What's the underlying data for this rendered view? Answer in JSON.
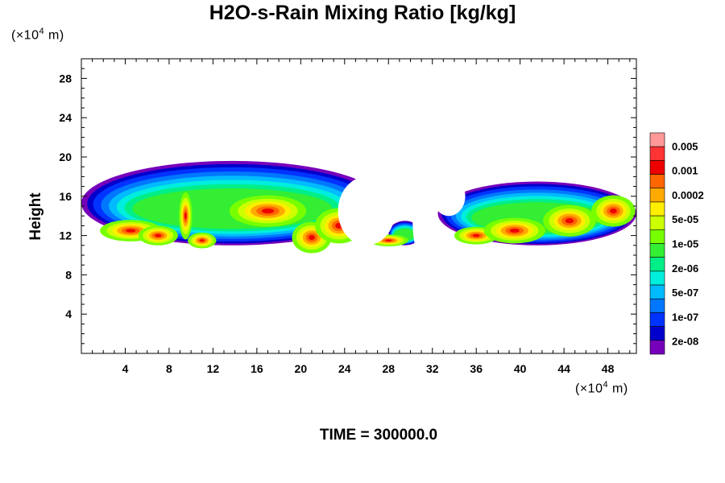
{
  "chart_data": {
    "type": "heatmap",
    "title": "H2O-s-Rain Mixing Ratio [kg/kg]",
    "ylabel": "Height",
    "xlabel": "",
    "x_unit_prefix": "(×10",
    "x_unit_exp": "4",
    "x_unit_suffix": " m)",
    "y_unit_prefix": "(×10",
    "y_unit_exp": "4",
    "y_unit_suffix": " m)",
    "xlim": [
      0,
      50.6
    ],
    "ylim": [
      0,
      30
    ],
    "x_ticks": [
      "4",
      "8",
      "12",
      "16",
      "20",
      "24",
      "28",
      "32",
      "36",
      "40",
      "44",
      "48"
    ],
    "y_ticks": [
      "4",
      "8",
      "12",
      "16",
      "20",
      "24",
      "28"
    ],
    "time_label": "TIME = 300000.0",
    "colorbar": {
      "labels": [
        "0.005",
        "0.001",
        "0.0002",
        "5e-05",
        "1e-05",
        "2e-06",
        "5e-07",
        "1e-07",
        "2e-08"
      ],
      "colors": [
        "#ff9999",
        "#ff3333",
        "#ee0000",
        "#ff6600",
        "#ffaa00",
        "#ffee00",
        "#ccff00",
        "#77ff00",
        "#33ee33",
        "#00ee88",
        "#00eedd",
        "#00bbff",
        "#0077ff",
        "#0033ff",
        "#0000cc",
        "#7700bb"
      ]
    },
    "bands": [
      {
        "x0": 0.0,
        "x1": 27.5,
        "top": 19.6,
        "bottom": 11.0
      },
      {
        "x0": 28.0,
        "x1": 31.0,
        "top": 13.5,
        "bottom": 11.0
      },
      {
        "x0": 32.5,
        "x1": 50.6,
        "top": 17.5,
        "bottom": 11.0
      }
    ]
  }
}
